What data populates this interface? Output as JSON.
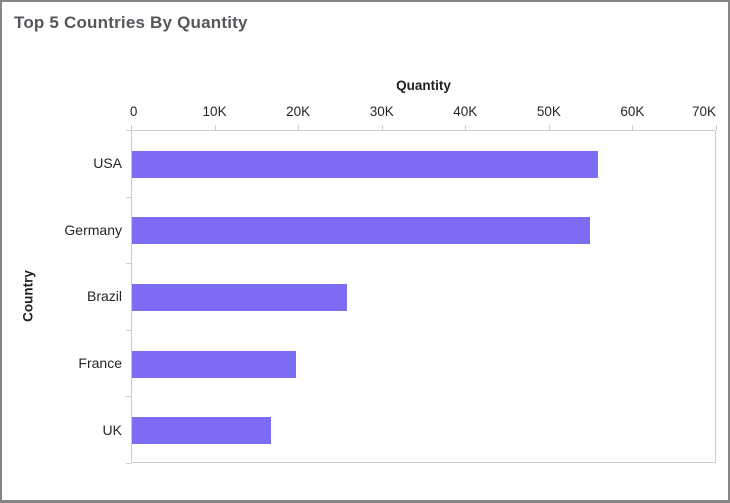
{
  "window": {
    "title": "Top 5 Countries By Quantity"
  },
  "chart_data": {
    "type": "bar",
    "orientation": "horizontal",
    "title": "Top 5 Countries By Quantity",
    "xlabel": "Quantity",
    "ylabel": "Country",
    "categories": [
      "USA",
      "Germany",
      "Brazil",
      "France",
      "UK"
    ],
    "values": [
      56000,
      55000,
      25800,
      19700,
      16700
    ],
    "xlim": [
      0,
      70000
    ],
    "x_ticks": [
      "0",
      "10K",
      "20K",
      "30K",
      "40K",
      "50K",
      "60K",
      "70K"
    ],
    "grid": false,
    "legend": "none",
    "bar_color": "#7b6cf3"
  },
  "colors": {
    "bar": "#7b6cf3",
    "title_text": "#56575c",
    "axis_title_text": "#1f1f1f",
    "tick_label_text": "#262626",
    "axis_line": "#cdcdcd",
    "frame_border": "#858585",
    "background": "#ffffff"
  }
}
